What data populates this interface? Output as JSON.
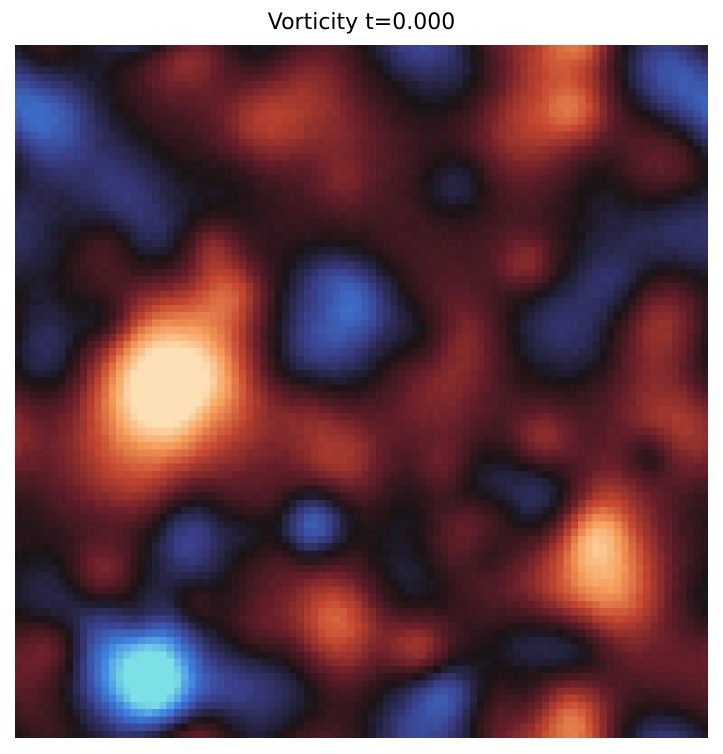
{
  "chart_data": {
    "type": "heatmap",
    "title": "Vorticity t=0.000",
    "xlabel": "",
    "ylabel": "",
    "grid": false,
    "axes_visible": false,
    "colorbar": false,
    "colormap": "icefire",
    "colormap_stops": [
      "#7de0e6",
      "#3d7fe0",
      "#3a3f8a",
      "#1a1316",
      "#6a1f2a",
      "#c2452f",
      "#f59a57",
      "#fde0b5"
    ],
    "resolution": [
      96,
      96
    ],
    "description_of_field": "random turbulent vorticity field with alternating positive (red/orange) and negative (blue) blobs separated by dark near-zero bands"
  }
}
